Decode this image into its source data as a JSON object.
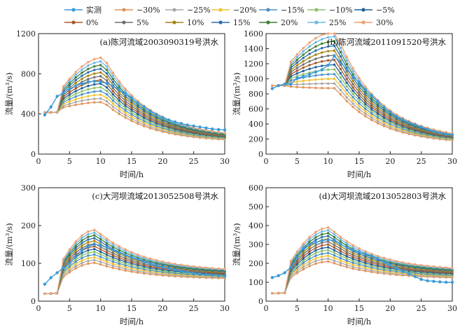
{
  "legend": [
    {
      "label": "实测",
      "color": "#3b9ad9"
    },
    {
      "label": "−30%",
      "color": "#e0945c"
    },
    {
      "label": "−25%",
      "color": "#a8a8a8"
    },
    {
      "label": "−20%",
      "color": "#f2c230"
    },
    {
      "label": "−15%",
      "color": "#4a90c8"
    },
    {
      "label": "−10%",
      "color": "#8cc06a"
    },
    {
      "label": "−5%",
      "color": "#1f5f99"
    },
    {
      "label": "0%",
      "color": "#a6582a"
    },
    {
      "label": "5%",
      "color": "#6e6e6e"
    },
    {
      "label": "10%",
      "color": "#a88410"
    },
    {
      "label": "15%",
      "color": "#2a6fae"
    },
    {
      "label": "20%",
      "color": "#3f7f34"
    },
    {
      "label": "25%",
      "color": "#6cb8e8"
    },
    {
      "label": "30%",
      "color": "#f0a070"
    }
  ],
  "chart_data": [
    {
      "type": "line",
      "title": "(a)陈河流域2003090319号洪水",
      "xlabel": "时间/h",
      "ylabel": "流量/(m³/s)",
      "xlim": [
        0,
        30
      ],
      "ylim": [
        0,
        1200
      ],
      "xticks": [
        0,
        5,
        10,
        15,
        20,
        25,
        30
      ],
      "yticks": [
        0,
        400,
        800,
        1200
      ],
      "x": [
        1,
        2,
        3,
        4,
        5,
        6,
        7,
        8,
        9,
        10,
        11,
        12,
        13,
        14,
        15,
        16,
        17,
        18,
        19,
        20,
        21,
        22,
        23,
        24,
        25,
        26,
        27,
        28,
        29,
        30
      ],
      "observed": [
        390,
        470,
        575,
        610,
        650,
        680,
        700,
        720,
        725,
        720,
        705,
        680,
        640,
        600,
        560,
        510,
        470,
        430,
        395,
        365,
        340,
        320,
        305,
        290,
        280,
        270,
        260,
        250,
        245,
        240
      ],
      "base_peak": 740,
      "base_start": 415,
      "base_end": 140,
      "peak_x": 10.5,
      "rise_start": 520
    },
    {
      "type": "line",
      "title": "(b)陈河流域2011091520号洪水",
      "xlabel": "时间/h",
      "ylabel": "流量/(m³/s)",
      "xlim": [
        0,
        30
      ],
      "ylim": [
        0,
        1600
      ],
      "xticks": [
        0,
        5,
        10,
        15,
        20,
        25,
        30
      ],
      "yticks": [
        0,
        200,
        400,
        600,
        800,
        1000,
        1200,
        1400,
        1600
      ],
      "x": [
        1,
        2,
        3,
        4,
        5,
        6,
        7,
        8,
        9,
        10,
        11,
        12,
        13,
        14,
        15,
        16,
        17,
        18,
        19,
        20,
        21,
        22,
        23,
        24,
        25,
        26,
        27,
        28,
        29,
        30
      ],
      "observed": [
        870,
        910,
        930,
        930,
        1010,
        1030,
        1060,
        1090,
        1120,
        1180,
        1300,
        1220,
        1120,
        1030,
        950,
        860,
        780,
        700,
        620,
        560,
        500,
        460,
        420,
        390,
        360,
        330,
        300,
        280,
        265,
        255
      ],
      "base_peak": 1250,
      "base_start": 910,
      "base_end": 160,
      "peak_x": 11.2,
      "rise_start": 930
    },
    {
      "type": "line",
      "title": "(c)大河坝流域2013052508号洪水",
      "xlabel": "时间/h",
      "ylabel": "流量/(m³/s)",
      "xlim": [
        0,
        30
      ],
      "ylim": [
        0,
        300
      ],
      "xticks": [
        0,
        5,
        10,
        15,
        20,
        25,
        30
      ],
      "yticks": [
        0,
        100,
        200,
        300
      ],
      "x": [
        1,
        2,
        3,
        4,
        5,
        6,
        7,
        8,
        9,
        10,
        11,
        12,
        13,
        14,
        15,
        16,
        17,
        18,
        19,
        20,
        21,
        22,
        23,
        24,
        25,
        26,
        27,
        28,
        29,
        30
      ],
      "observed": [
        45,
        62,
        75,
        88,
        100,
        118,
        135,
        145,
        150,
        148,
        142,
        135,
        128,
        122,
        115,
        110,
        104,
        99,
        94,
        90,
        86,
        83,
        80,
        77,
        74,
        72,
        70,
        68,
        67,
        66
      ],
      "base_peak": 145,
      "base_start": 20,
      "base_end": 68,
      "peak_x": 9.2,
      "rise_start": 22
    },
    {
      "type": "line",
      "title": "(d)大河坝流域2013052803号洪水",
      "xlabel": "时间/h",
      "ylabel": "流量/(m³/s)",
      "xlim": [
        0,
        30
      ],
      "ylim": [
        0,
        600
      ],
      "xticks": [
        0,
        5,
        10,
        15,
        20,
        25,
        30
      ],
      "yticks": [
        0,
        100,
        200,
        300,
        400,
        500,
        600
      ],
      "x": [
        1,
        2,
        3,
        4,
        5,
        6,
        7,
        8,
        9,
        10,
        11,
        12,
        13,
        14,
        15,
        16,
        17,
        18,
        19,
        20,
        21,
        22,
        23,
        24,
        25,
        26,
        27,
        28,
        29,
        30
      ],
      "observed": [
        125,
        135,
        150,
        180,
        230,
        280,
        300,
        310,
        320,
        325,
        320,
        300,
        285,
        270,
        260,
        250,
        240,
        225,
        205,
        190,
        175,
        160,
        145,
        130,
        115,
        108,
        105,
        102,
        100,
        100
      ],
      "base_peak": 300,
      "base_start": 42,
      "base_end": 140,
      "peak_x": 10.2,
      "rise_start": 45
    }
  ]
}
